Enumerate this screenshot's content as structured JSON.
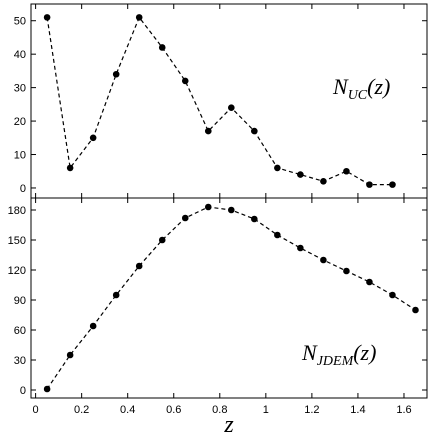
{
  "chart_data": [
    {
      "type": "line",
      "annotation": {
        "base": "N",
        "sub": "UC",
        "arg": "(z)"
      },
      "xlim": [
        -0.02,
        1.7
      ],
      "ylim": [
        -3,
        55
      ],
      "yticks": [
        0,
        10,
        20,
        30,
        40,
        50
      ],
      "grid": false,
      "line_style": "dashed",
      "marker": "circle",
      "color": "#000000",
      "series": [
        {
          "x": [
            0.05,
            0.15,
            0.25,
            0.35,
            0.45,
            0.55,
            0.65,
            0.75,
            0.85,
            0.95,
            1.05,
            1.15,
            1.25,
            1.35,
            1.45,
            1.55
          ],
          "y": [
            51,
            6,
            15,
            34,
            51,
            42,
            32,
            17,
            24,
            17,
            6,
            4,
            2,
            5,
            1,
            1
          ]
        }
      ]
    },
    {
      "type": "line",
      "annotation": {
        "base": "N",
        "sub": "JDEM",
        "arg": "(z)"
      },
      "xlim": [
        -0.02,
        1.7
      ],
      "xticks": [
        "0",
        "0.2",
        "0.4",
        "0.6",
        "0.8",
        "1",
        "1.2",
        "1.4",
        "1.6"
      ],
      "xlabel": "z",
      "ylim": [
        -8,
        192
      ],
      "yticks": [
        0,
        30,
        60,
        90,
        120,
        150,
        180
      ],
      "grid": false,
      "line_style": "dashed",
      "marker": "circle",
      "color": "#000000",
      "series": [
        {
          "x": [
            0.05,
            0.15,
            0.25,
            0.35,
            0.45,
            0.55,
            0.65,
            0.75,
            0.85,
            0.95,
            1.05,
            1.15,
            1.25,
            1.35,
            1.45,
            1.55,
            1.65
          ],
          "y": [
            1,
            35,
            64,
            95,
            124,
            150,
            172,
            183,
            180,
            171,
            155,
            142,
            130,
            119,
            108,
            95,
            80
          ]
        }
      ]
    }
  ]
}
